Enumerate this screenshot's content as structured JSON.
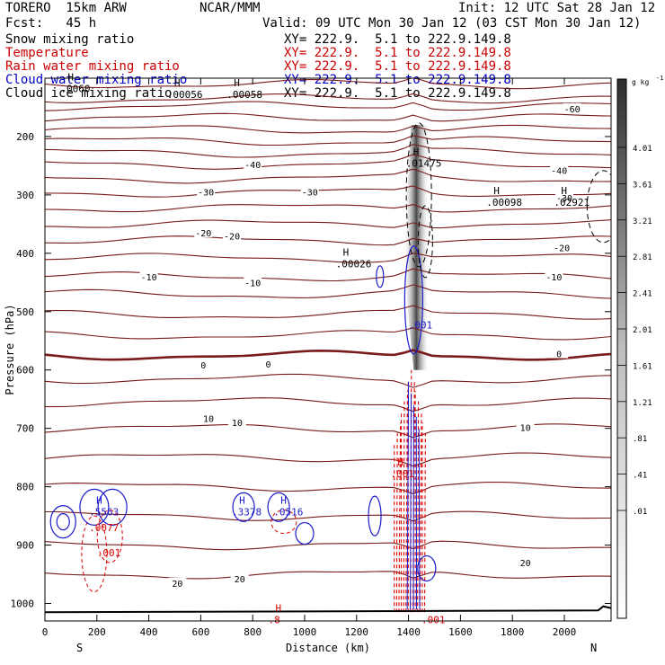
{
  "header": {
    "model": "TORERO  15km ARW",
    "org": "NCAR/MMM",
    "init": "Init: 12 UTC Sat 28 Jan 12",
    "fcst": "Fcst:   45 h",
    "valid": "Valid: 09 UTC Mon 30 Jan 12 (03 CST Mon 30 Jan 12)"
  },
  "fields": [
    {
      "name": "Snow mixing ratio",
      "xy": "XY= 222.9.  5.1 to 222.9.149.8",
      "color": "#000000"
    },
    {
      "name": "Temperature",
      "xy": "XY= 222.9.  5.1 to 222.9.149.8",
      "color": "#cc0000"
    },
    {
      "name": "Rain water mixing ratio",
      "xy": "XY= 222.9.  5.1 to 222.9.149.8",
      "color": "#cc0000"
    },
    {
      "name": "Cloud water mixing ratio",
      "xy": "XY= 222.9.  5.1 to 222.9.149.8",
      "color": "#0000cc"
    },
    {
      "name": "Cloud ice mixing ratio",
      "xy": "XY= 222.9.  5.1 to 222.9.149.8",
      "color": "#000000"
    }
  ],
  "colorbar": {
    "unit": "g kg",
    "unit_exp": "-1",
    "ticks": [
      "4.01",
      "3.61",
      "3.21",
      "2.81",
      "2.41",
      "2.01",
      "1.61",
      "1.21",
      ".81",
      ".41",
      ".01"
    ]
  },
  "chart_data": {
    "type": "cross-section",
    "xlabel": "Distance (km)",
    "ylabel": "Pressure (hPa)",
    "xlim": [
      0,
      2180
    ],
    "ylim": [
      1030,
      100
    ],
    "xticks": [
      "0",
      "200",
      "400",
      "600",
      "800",
      "1000",
      "1200",
      "1400",
      "1600",
      "1800",
      "2000"
    ],
    "yticks": [
      "200",
      "300",
      "400",
      "500",
      "600",
      "700",
      "800",
      "900",
      "1000"
    ],
    "endpoints": {
      "left": "S",
      "right": "N"
    },
    "colors": {
      "temperature": "#7a1a1a",
      "rain": "#dd0000",
      "cloud_water": "#1a1acc",
      "cloud_ice": "#000000",
      "snow_shade": "#333333"
    },
    "isotherms": [
      {
        "label": "-60",
        "pressure": 110
      },
      {
        "label": "",
        "pressure": 135
      },
      {
        "label": "-60",
        "pressure": 148
      },
      {
        "label": "",
        "pressure": 168
      },
      {
        "label": "",
        "pressure": 188
      },
      {
        "label": "",
        "pressure": 208
      },
      {
        "label": "",
        "pressure": 228
      },
      {
        "label": "-40",
        "pressure": 248
      },
      {
        "label": "",
        "pressure": 272
      },
      {
        "label": "-30",
        "pressure": 296
      },
      {
        "label": "",
        "pressure": 322
      },
      {
        "label": "-20",
        "pressure": 350
      },
      {
        "label": "",
        "pressure": 378
      },
      {
        "label": "",
        "pressure": 408
      },
      {
        "label": "-10",
        "pressure": 440
      },
      {
        "label": "",
        "pressure": 470
      },
      {
        "label": "",
        "pressure": 505
      },
      {
        "label": "",
        "pressure": 540
      },
      {
        "label": "0",
        "pressure": 575
      },
      {
        "label": "",
        "pressure": 615
      },
      {
        "label": "",
        "pressure": 655
      },
      {
        "label": "10",
        "pressure": 700
      },
      {
        "label": "",
        "pressure": 750
      },
      {
        "label": "",
        "pressure": 800
      },
      {
        "label": "",
        "pressure": 850
      },
      {
        "label": "",
        "pressure": 900
      },
      {
        "label": "20",
        "pressure": 950
      }
    ],
    "isotherm_labels": [
      {
        "text": "-60",
        "x": 2030,
        "p": 152
      },
      {
        "text": "-40",
        "x": 800,
        "p": 248
      },
      {
        "text": "-40",
        "x": 1980,
        "p": 258
      },
      {
        "text": "-30",
        "x": 620,
        "p": 295
      },
      {
        "text": "-30",
        "x": 1020,
        "p": 295
      },
      {
        "text": "-30",
        "x": 2000,
        "p": 305
      },
      {
        "text": "-20",
        "x": 610,
        "p": 365
      },
      {
        "text": "-20",
        "x": 720,
        "p": 370
      },
      {
        "text": "-20",
        "x": 1990,
        "p": 390
      },
      {
        "text": "-10",
        "x": 400,
        "p": 440
      },
      {
        "text": "-10",
        "x": 800,
        "p": 450
      },
      {
        "text": "-10",
        "x": 1960,
        "p": 440
      },
      {
        "text": "0",
        "x": 610,
        "p": 591
      },
      {
        "text": "0",
        "x": 860,
        "p": 590
      },
      {
        "text": "0",
        "x": 1980,
        "p": 572
      },
      {
        "text": "10",
        "x": 630,
        "p": 683
      },
      {
        "text": "10",
        "x": 740,
        "p": 690
      },
      {
        "text": "10",
        "x": 1850,
        "p": 698
      },
      {
        "text": "20",
        "x": 510,
        "p": 965
      },
      {
        "text": "20",
        "x": 750,
        "p": 958
      },
      {
        "text": "20",
        "x": 1850,
        "p": 930
      }
    ],
    "max_labels": [
      {
        "text": "H",
        "sub": ".0060",
        "x": 60,
        "p": 110,
        "color": "#000000"
      },
      {
        "text": "H",
        "sub": ".00056",
        "x": 470,
        "p": 120,
        "color": "#000000"
      },
      {
        "text": "H",
        "sub": ".00058",
        "x": 700,
        "p": 120,
        "color": "#000000"
      },
      {
        "text": "H",
        "sub": ".01475",
        "x": 1390,
        "p": 238,
        "color": "#000000"
      },
      {
        "text": "H",
        "sub": ".00026",
        "x": 1120,
        "p": 410,
        "color": "#000000"
      },
      {
        "text": "H",
        "sub": ".00098",
        "x": 1700,
        "p": 305,
        "color": "#000000"
      },
      {
        "text": "H",
        "sub": ".02921",
        "x": 1960,
        "p": 305,
        "color": "#000000"
      },
      {
        "text": "H",
        "sub": ".5563",
        "x": 170,
        "p": 835,
        "color": "#1a1acc"
      },
      {
        "text": "H",
        "sub": ".3378",
        "x": 720,
        "p": 835,
        "color": "#1a1acc"
      },
      {
        "text": "H",
        "sub": ".0516",
        "x": 880,
        "p": 835,
        "color": "#1a1acc"
      },
      {
        "text": "H",
        "sub": ".001",
        "x": 1330,
        "p": 770,
        "color": "#dd0000"
      },
      {
        "text": "H",
        "sub": ".8",
        "x": 860,
        "p": 1020,
        "color": "#dd0000"
      },
      {
        "text": "",
        "sub": ".001",
        "x": 1450,
        "p": 1020,
        "color": "#dd0000"
      },
      {
        "text": "",
        "sub": ".001",
        "x": 1400,
        "p": 515,
        "color": "#1a1acc"
      },
      {
        "text": "",
        "sub": ".0077",
        "x": 170,
        "p": 862,
        "color": "#dd0000"
      },
      {
        "text": "",
        "sub": ".001",
        "x": 200,
        "p": 905,
        "color": "#dd0000"
      }
    ]
  }
}
